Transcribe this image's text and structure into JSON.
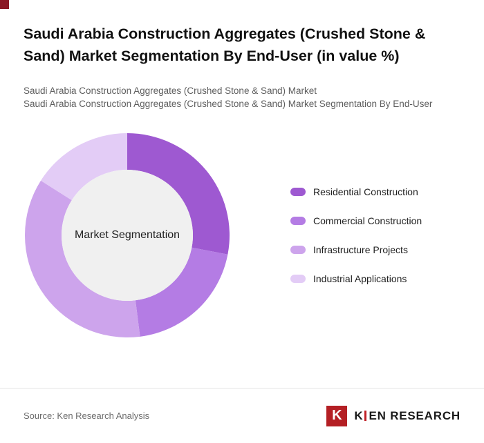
{
  "page": {
    "title": "Saudi Arabia Construction Aggregates (Crushed Stone & Sand) Market Segmentation By End-User (in value %)",
    "subtitle_1": "Saudi Arabia Construction Aggregates (Crushed Stone & Sand) Market",
    "subtitle_2": "Saudi Arabia Construction Aggregates (Crushed Stone & Sand) Market Segmentation By End-User"
  },
  "chart_data": {
    "type": "pie",
    "subtype": "donut",
    "title": "Saudi Arabia Construction Aggregates (Crushed Stone & Sand) Market Segmentation By End-User (in value %)",
    "center_label": "Market Segmentation",
    "center_color": "#f0f0f0",
    "start_angle_deg": 0,
    "direction": "clockwise",
    "legend_position": "right",
    "units": "value %",
    "segments": [
      {
        "label": "Residential Construction",
        "value": 28,
        "color": "#9e59d1"
      },
      {
        "label": "Commercial Construction",
        "value": 20,
        "color": "#b47ce4"
      },
      {
        "label": "Infrastructure Projects",
        "value": 36,
        "color": "#cda4ec"
      },
      {
        "label": "Industrial Applications",
        "value": 16,
        "color": "#e3ccf6"
      }
    ]
  },
  "colors": {
    "corner_accent": "#8b1724",
    "brand_red": "#b41f24",
    "divider": "#e3e3e3"
  },
  "footer": {
    "source": "Source: Ken Research Analysis",
    "brand_mark": "K",
    "brand_k": "K",
    "brand_rest": "EN RESEARCH"
  }
}
